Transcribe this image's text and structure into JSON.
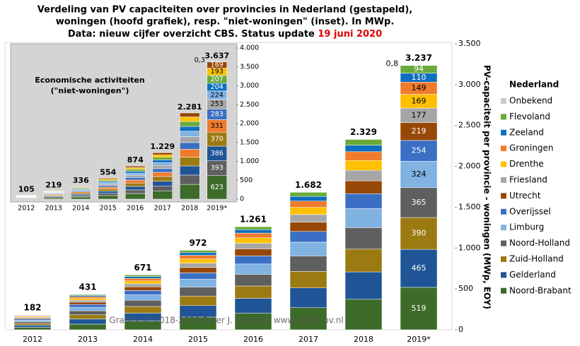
{
  "chart_data": [
    {
      "type": "bar",
      "stacked": true,
      "title": [
        "Verdeling van PV capaciteiten over provincies in Nederland (gestapeld),",
        "woningen (hoofd grafiek), resp. \"niet-woningen\" (inset). In MWp.",
        "Data: nieuw cijfer overzicht CBS. Status update "
      ],
      "title_highlight": "19 juni 2020",
      "credit": "Grafiek © 2018-2020 Peter J. Segaar / www.polderpv.nl",
      "ylabel": "PV-capaciteit per provincie - woningen (MWp, EOY)",
      "legend_title": "Nederland",
      "legend": "right",
      "categories": [
        "2012",
        "2013",
        "2014",
        "2015",
        "2016",
        "2017",
        "2018",
        "2019*"
      ],
      "ylim": [
        0,
        3500
      ],
      "yticks": [
        0,
        500,
        {
          "value": 1000,
          "label": "1.000"
        },
        {
          "value": 1500,
          "label": "1.500"
        },
        {
          "value": 2000,
          "label": "2.000"
        },
        {
          "value": 2500,
          "label": "2.500"
        },
        {
          "value": 3000,
          "label": "3.000"
        },
        {
          "value": 3500,
          "label": "3.500"
        }
      ],
      "totals": {
        "values": [
          182,
          431,
          671,
          972,
          1261,
          1682,
          2329,
          3237
        ],
        "value_labels": [
          "182",
          "431",
          "671",
          "972",
          "1.261",
          "1.682",
          "2.329",
          "3.237"
        ]
      },
      "series": [
        {
          "name": "Noord-Brabant",
          "color": "#3d6b2a",
          "values": [
            31,
            69,
            107,
            156,
            202,
            270,
            373,
            519
          ],
          "value_labels": [
            null,
            null,
            null,
            null,
            null,
            null,
            null,
            "519"
          ]
        },
        {
          "name": "Gelderland",
          "color": "#1f5596",
          "values": [
            26,
            62,
            97,
            140,
            182,
            242,
            335,
            465
          ],
          "value_labels": [
            null,
            null,
            null,
            null,
            null,
            null,
            null,
            "465"
          ]
        },
        {
          "name": "Zuid-Holland",
          "color": "#9c7a12",
          "values": [
            22,
            52,
            81,
            117,
            152,
            202,
            279,
            390
          ],
          "value_labels": [
            null,
            null,
            null,
            null,
            null,
            null,
            null,
            "390"
          ]
        },
        {
          "name": "Noord-Holland",
          "color": "#5f5f5f",
          "values": [
            21,
            49,
            76,
            110,
            143,
            190,
            263,
            365
          ],
          "value_labels": [
            null,
            null,
            null,
            null,
            null,
            null,
            null,
            "365"
          ]
        },
        {
          "name": "Limburg",
          "color": "#80b2e2",
          "values": [
            18,
            43,
            67,
            97,
            126,
            168,
            233,
            324
          ],
          "value_labels": [
            null,
            null,
            null,
            null,
            null,
            null,
            null,
            "324"
          ]
        },
        {
          "name": "Overijssel",
          "color": "#3a6fc4",
          "values": [
            14,
            34,
            52,
            76,
            99,
            131,
            182,
            254
          ],
          "value_labels": [
            null,
            null,
            null,
            null,
            null,
            null,
            null,
            "254"
          ]
        },
        {
          "name": "Utrecht",
          "color": "#974806",
          "values": [
            12,
            29,
            46,
            66,
            86,
            114,
            158,
            219
          ],
          "value_labels": [
            null,
            null,
            null,
            null,
            null,
            null,
            null,
            "219"
          ]
        },
        {
          "name": "Friesland",
          "color": "#a6a6a6",
          "values": [
            10,
            24,
            37,
            53,
            69,
            93,
            128,
            177
          ],
          "value_labels": [
            null,
            null,
            null,
            null,
            null,
            null,
            null,
            "177"
          ]
        },
        {
          "name": "Drenthe",
          "color": "#ffc000",
          "values": [
            9,
            22,
            35,
            51,
            66,
            88,
            121,
            169
          ],
          "value_labels": [
            null,
            null,
            null,
            null,
            null,
            null,
            null,
            "169"
          ]
        },
        {
          "name": "Groningen",
          "color": "#ef7b2c",
          "values": [
            8,
            20,
            31,
            45,
            58,
            77,
            107,
            149
          ],
          "value_labels": [
            null,
            null,
            null,
            null,
            null,
            null,
            null,
            "149"
          ]
        },
        {
          "name": "Zeeland",
          "color": "#0f6fbf",
          "values": [
            6,
            15,
            23,
            33,
            43,
            57,
            80,
            110
          ],
          "value_labels": [
            null,
            null,
            null,
            null,
            null,
            null,
            null,
            "110"
          ]
        },
        {
          "name": "Flevoland",
          "color": "#6aaa3a",
          "values": [
            5,
            12,
            19,
            28,
            35,
            50,
            70,
            94
          ],
          "value_labels": [
            null,
            null,
            null,
            null,
            null,
            null,
            null,
            "94"
          ]
        },
        {
          "name": "Onbekend",
          "color": "#c9c9c9",
          "values": [
            0,
            0,
            0,
            0,
            0,
            0,
            0,
            0.8
          ],
          "value_labels": [
            null,
            null,
            null,
            null,
            null,
            null,
            null,
            "0,8"
          ]
        }
      ]
    },
    {
      "type": "bar",
      "stacked": true,
      "title": [
        "Economische activiteiten",
        "(\"niet-woningen\")"
      ],
      "categories": [
        "2012",
        "2013",
        "2014",
        "2015",
        "2016",
        "2017",
        "2018",
        "2019*"
      ],
      "ylim": [
        0,
        4000
      ],
      "yticks": [
        0,
        500,
        {
          "value": 1000,
          "label": "1.000"
        },
        {
          "value": 1500,
          "label": "1.500"
        },
        {
          "value": 2000,
          "label": "2.000"
        },
        {
          "value": 2500,
          "label": "2.500"
        },
        {
          "value": 3000,
          "label": "3.000"
        },
        {
          "value": 3500,
          "label": "3.500"
        },
        {
          "value": 4000,
          "label": "4.000"
        }
      ],
      "totals": {
        "values": [
          105,
          219,
          336,
          554,
          874,
          1229,
          2281,
          3637
        ],
        "value_labels": [
          "105",
          "219",
          "336",
          "554",
          "874",
          "1.229",
          "2.281",
          "3.637"
        ]
      },
      "series": [
        {
          "name": "Noord-Brabant",
          "color": "#3d6b2a",
          "values": [
            18,
            37,
            57,
            95,
            150,
            210,
            391,
            623
          ],
          "value_labels": [
            null,
            null,
            null,
            null,
            null,
            null,
            null,
            "623"
          ]
        },
        {
          "name": "Noord-Holland",
          "color": "#5f5f5f",
          "values": [
            11,
            24,
            36,
            60,
            94,
            133,
            246,
            393
          ],
          "value_labels": [
            null,
            null,
            null,
            null,
            null,
            null,
            null,
            "393"
          ]
        },
        {
          "name": "Gelderland",
          "color": "#1f5596",
          "values": [
            11,
            23,
            36,
            59,
            93,
            131,
            242,
            386
          ],
          "value_labels": [
            null,
            null,
            null,
            null,
            null,
            null,
            null,
            "386"
          ]
        },
        {
          "name": "Zuid-Holland",
          "color": "#9c7a12",
          "values": [
            11,
            22,
            34,
            56,
            89,
            125,
            232,
            370
          ],
          "value_labels": [
            null,
            null,
            null,
            null,
            null,
            null,
            null,
            "370"
          ]
        },
        {
          "name": "Groningen",
          "color": "#ef7b2c",
          "values": [
            10,
            20,
            31,
            50,
            80,
            112,
            208,
            331
          ],
          "value_labels": [
            null,
            null,
            null,
            null,
            null,
            null,
            null,
            "331"
          ]
        },
        {
          "name": "Overijssel",
          "color": "#3a6fc4",
          "values": [
            8,
            17,
            26,
            43,
            68,
            96,
            178,
            283
          ],
          "value_labels": [
            null,
            null,
            null,
            null,
            null,
            null,
            null,
            "283"
          ]
        },
        {
          "name": "Friesland",
          "color": "#a6a6a6",
          "values": [
            7,
            15,
            24,
            39,
            61,
            86,
            159,
            253
          ],
          "value_labels": [
            null,
            null,
            null,
            null,
            null,
            null,
            null,
            "253"
          ]
        },
        {
          "name": "Limburg",
          "color": "#80b2e2",
          "values": [
            7,
            14,
            21,
            34,
            54,
            76,
            141,
            224
          ],
          "value_labels": [
            null,
            null,
            null,
            null,
            null,
            null,
            null,
            "224"
          ]
        },
        {
          "name": "Zeeland",
          "color": "#0f6fbf",
          "values": [
            6,
            12,
            19,
            31,
            49,
            69,
            128,
            204
          ],
          "value_labels": [
            null,
            null,
            null,
            null,
            null,
            null,
            null,
            "204"
          ]
        },
        {
          "name": "Flevoland",
          "color": "#6aaa3a",
          "values": [
            6,
            12,
            19,
            32,
            50,
            70,
            130,
            207
          ],
          "value_labels": [
            null,
            null,
            null,
            null,
            null,
            null,
            null,
            "207"
          ]
        },
        {
          "name": "Drenthe",
          "color": "#ffc000",
          "values": [
            6,
            12,
            18,
            29,
            46,
            65,
            121,
            193
          ],
          "value_labels": [
            null,
            null,
            null,
            null,
            null,
            null,
            null,
            "193"
          ]
        },
        {
          "name": "Utrecht",
          "color": "#974806",
          "values": [
            4,
            11,
            15,
            26,
            40,
            56,
            105,
            169
          ],
          "value_labels": [
            null,
            null,
            null,
            null,
            null,
            null,
            null,
            "169"
          ]
        },
        {
          "name": "Onbekend",
          "color": "#c9c9c9",
          "values": [
            0,
            0,
            0,
            0,
            0,
            0,
            0,
            0.3
          ],
          "value_labels": [
            null,
            null,
            null,
            null,
            null,
            null,
            null,
            "0,3"
          ]
        }
      ]
    }
  ]
}
